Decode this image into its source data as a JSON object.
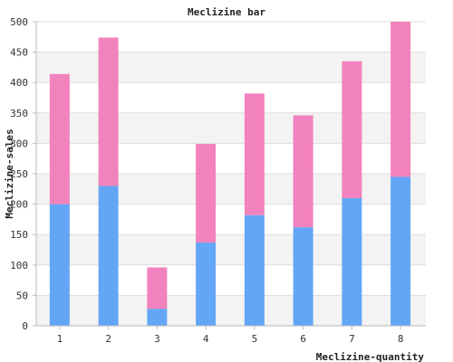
{
  "chart_data": {
    "type": "bar",
    "stacked": true,
    "title": "Meclizine bar",
    "xlabel": "Meclizine-quantity",
    "ylabel": "Meclizine-sales",
    "categories": [
      "1",
      "2",
      "3",
      "4",
      "5",
      "6",
      "7",
      "8"
    ],
    "ylim": [
      0,
      500
    ],
    "yticks": [
      0,
      50,
      100,
      150,
      200,
      250,
      300,
      350,
      400,
      450,
      500
    ],
    "grid": true,
    "series": [
      {
        "values": [
          200,
          230,
          28,
          137,
          182,
          162,
          210,
          245
        ],
        "color": "#63a6f5"
      },
      {
        "values": [
          214,
          244,
          68,
          162,
          200,
          184,
          225,
          255
        ],
        "color": "#f282bd"
      }
    ],
    "band_colors": [
      "#f3f3f3",
      "#ffffff"
    ],
    "grid_color": "#dddddd"
  }
}
